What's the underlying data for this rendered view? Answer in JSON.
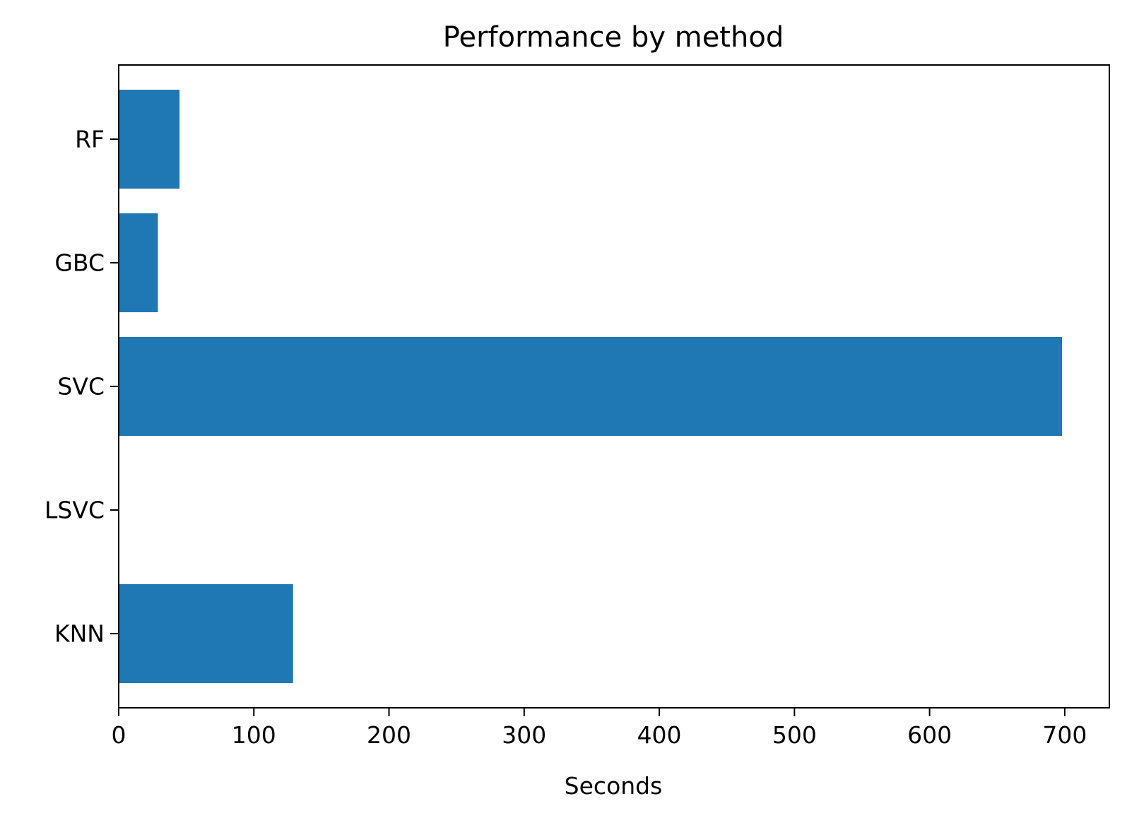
{
  "chart_data": {
    "type": "bar",
    "orientation": "horizontal",
    "title": "Performance by method",
    "xlabel": "Seconds",
    "ylabel": "",
    "categories": [
      "KNN",
      "LSVC",
      "SVC",
      "GBC",
      "RF"
    ],
    "values": [
      129,
      0,
      698,
      29,
      45
    ],
    "xlim": [
      0,
      733
    ],
    "xticks": [
      0,
      100,
      200,
      300,
      400,
      500,
      600,
      700
    ],
    "bar_color": "#1f77b4",
    "grid": false,
    "legend": "none"
  }
}
